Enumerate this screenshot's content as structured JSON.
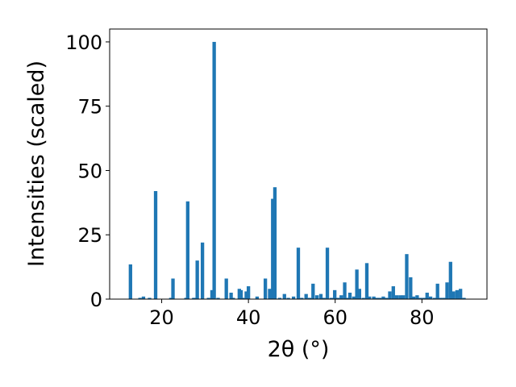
{
  "chart_data": {
    "type": "bar",
    "xlabel": "2θ (°)",
    "ylabel": "Intensities (scaled)",
    "xlim": [
      8,
      95
    ],
    "ylim": [
      0,
      105
    ],
    "x_ticks": [
      "20",
      "40",
      "60",
      "80"
    ],
    "x_tick_values": [
      20,
      40,
      60,
      80
    ],
    "y_ticks": [
      "0",
      "25",
      "50",
      "75",
      "100"
    ],
    "y_tick_values": [
      0,
      25,
      50,
      75,
      100
    ],
    "bar_color": "#1f77b4",
    "bar_width": 0.8,
    "grid": false,
    "x": [
      12.8,
      15.0,
      15.8,
      17.2,
      18.6,
      22.1,
      22.6,
      25.6,
      26.0,
      27.4,
      28.2,
      29.4,
      30.8,
      31.6,
      32.1,
      33.0,
      34.9,
      36.0,
      36.5,
      37.9,
      38.3,
      38.7,
      39.5,
      40.0,
      42.0,
      43.9,
      44.9,
      45.6,
      46.1,
      47.2,
      48.3,
      49.2,
      50.4,
      51.5,
      52.3,
      53.3,
      54.1,
      54.9,
      55.8,
      56.7,
      57.4,
      58.2,
      59.1,
      59.9,
      60.6,
      61.4,
      62.2,
      62.9,
      63.4,
      64.3,
      65.0,
      65.6,
      66.5,
      67.3,
      67.9,
      68.9,
      69.6,
      70.3,
      71.1,
      71.8,
      72.6,
      73.4,
      74.2,
      75.0,
      75.7,
      76.5,
      77.4,
      78.1,
      78.9,
      79.7,
      80.5,
      81.2,
      82.0,
      82.9,
      83.6,
      84.3,
      85.1,
      85.8,
      86.6,
      87.3,
      88.1,
      88.9,
      89.7
    ],
    "values": [
      13.5,
      0.5,
      1.0,
      0.5,
      42.0,
      0.5,
      8.0,
      0.5,
      38.0,
      0.5,
      15.0,
      22.0,
      0.5,
      3.5,
      100.0,
      0.5,
      8.0,
      2.5,
      0.5,
      4.0,
      3.5,
      0.5,
      3.0,
      5.0,
      1.0,
      8.0,
      4.0,
      39.0,
      43.5,
      0.5,
      2.0,
      0.5,
      1.0,
      20.0,
      0.5,
      2.0,
      0.5,
      6.0,
      1.5,
      2.0,
      0.5,
      20.0,
      0.5,
      3.5,
      0.5,
      1.5,
      6.5,
      0.5,
      2.5,
      1.0,
      11.5,
      4.0,
      0.5,
      14.0,
      1.0,
      1.0,
      0.5,
      0.5,
      1.0,
      0.5,
      3.0,
      5.0,
      1.5,
      1.5,
      1.5,
      17.5,
      8.5,
      1.0,
      1.5,
      0.5,
      0.5,
      2.5,
      1.0,
      0.5,
      6.0,
      0.5,
      0.5,
      6.5,
      14.5,
      3.0,
      3.5,
      4.0,
      0.5
    ]
  }
}
